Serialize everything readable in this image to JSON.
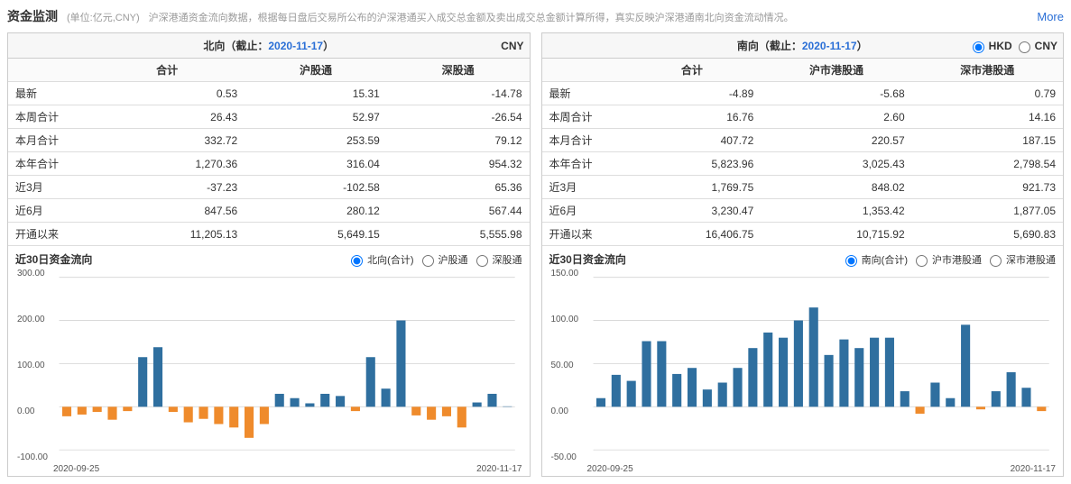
{
  "header": {
    "title": "资金监测",
    "unit": "(单位:亿元,CNY)",
    "desc": "沪深港通资金流向数据，根据每日盘后交易所公布的沪深港通买入成交总金额及卖出成交总金额计算所得，真实反映沪深港通南北向资金流动情况。",
    "more": "More"
  },
  "north": {
    "title_prefix": "北向（截止：",
    "title_date": "2020-11-17",
    "title_suffix": "）",
    "currency_label": "CNY",
    "columns": [
      "合计",
      "沪股通",
      "深股通"
    ],
    "rows": [
      {
        "label": "最新",
        "vals": [
          "0.53",
          "15.31",
          "-14.78"
        ]
      },
      {
        "label": "本周合计",
        "vals": [
          "26.43",
          "52.97",
          "-26.54"
        ]
      },
      {
        "label": "本月合计",
        "vals": [
          "332.72",
          "253.59",
          "79.12"
        ]
      },
      {
        "label": "本年合计",
        "vals": [
          "1,270.36",
          "316.04",
          "954.32"
        ]
      },
      {
        "label": "近3月",
        "vals": [
          "-37.23",
          "-102.58",
          "65.36"
        ]
      },
      {
        "label": "近6月",
        "vals": [
          "847.56",
          "280.12",
          "567.44"
        ]
      },
      {
        "label": "开通以来",
        "vals": [
          "11,205.13",
          "5,649.15",
          "5,555.98"
        ]
      }
    ]
  },
  "south": {
    "title_prefix": "南向（截止：",
    "title_date": "2020-11-17",
    "title_suffix": "）",
    "currency_options": [
      "HKD",
      "CNY"
    ],
    "currency_selected": "HKD",
    "columns": [
      "合计",
      "沪市港股通",
      "深市港股通"
    ],
    "rows": [
      {
        "label": "最新",
        "vals": [
          "-4.89",
          "-5.68",
          "0.79"
        ]
      },
      {
        "label": "本周合计",
        "vals": [
          "16.76",
          "2.60",
          "14.16"
        ]
      },
      {
        "label": "本月合计",
        "vals": [
          "407.72",
          "220.57",
          "187.15"
        ]
      },
      {
        "label": "本年合计",
        "vals": [
          "5,823.96",
          "3,025.43",
          "2,798.54"
        ]
      },
      {
        "label": "近3月",
        "vals": [
          "1,769.75",
          "848.02",
          "921.73"
        ]
      },
      {
        "label": "近6月",
        "vals": [
          "3,230.47",
          "1,353.42",
          "1,877.05"
        ]
      },
      {
        "label": "开通以来",
        "vals": [
          "16,406.75",
          "10,715.92",
          "5,690.83"
        ]
      }
    ]
  },
  "chart_north": {
    "title": "近30日资金流向",
    "radios": [
      "北向(合计)",
      "沪股通",
      "深股通"
    ],
    "radio_selected": "北向(合计)",
    "type": "bar",
    "ymin": -100,
    "ymax": 300,
    "ystep": 100,
    "ytick_labels": [
      "-100.00",
      "0.00",
      "100.00",
      "200.00",
      "300.00"
    ],
    "x_start": "2020-09-25",
    "x_end": "2020-11-17",
    "pos_color": "#2f6f9f",
    "neg_color": "#ef8b2c",
    "grid_color": "#d9d9d9",
    "background": "#ffffff",
    "values": [
      -22,
      -18,
      -12,
      -30,
      -10,
      115,
      138,
      -12,
      -36,
      -28,
      -40,
      -48,
      -72,
      -40,
      30,
      20,
      8,
      30,
      25,
      -10,
      115,
      42,
      200,
      -20,
      -30,
      -22,
      -48,
      10,
      30,
      1
    ]
  },
  "chart_south": {
    "title": "近30日资金流向",
    "radios": [
      "南向(合计)",
      "沪市港股通",
      "深市港股通"
    ],
    "radio_selected": "南向(合计)",
    "type": "bar",
    "ymin": -50,
    "ymax": 150,
    "ystep": 50,
    "ytick_labels": [
      "-50.00",
      "0.00",
      "50.00",
      "100.00",
      "150.00"
    ],
    "x_start": "2020-09-25",
    "x_end": "2020-11-17",
    "pos_color": "#2f6f9f",
    "neg_color": "#ef8b2c",
    "grid_color": "#d9d9d9",
    "background": "#ffffff",
    "values": [
      10,
      37,
      30,
      76,
      76,
      38,
      45,
      20,
      28,
      45,
      68,
      86,
      80,
      100,
      115,
      60,
      78,
      68,
      80,
      80,
      18,
      -8,
      28,
      10,
      95,
      -3,
      18,
      40,
      22,
      -5
    ]
  }
}
